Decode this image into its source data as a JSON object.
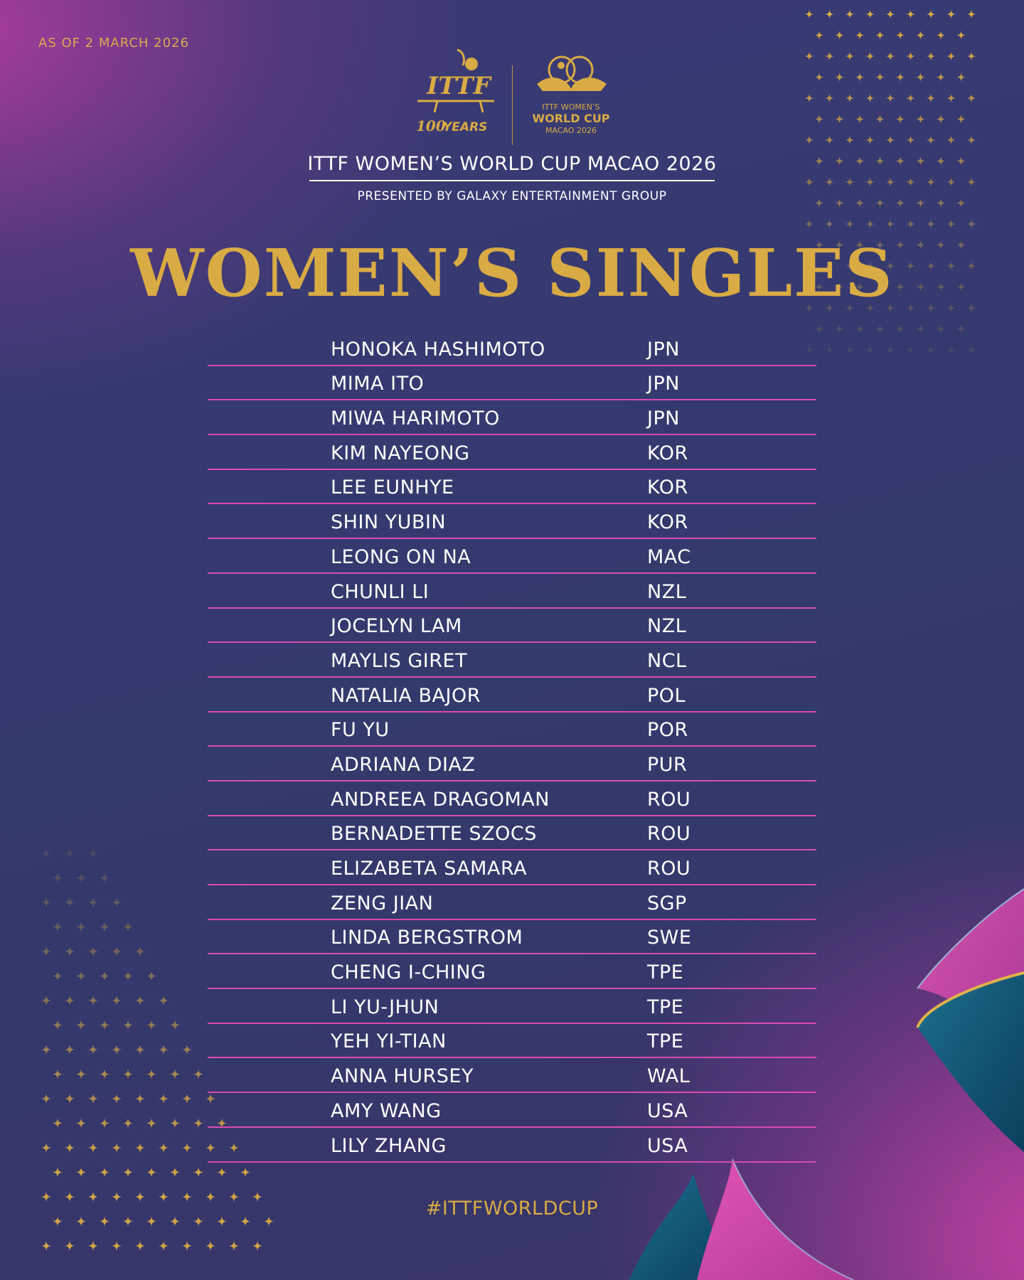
{
  "header": {
    "as_of": "AS OF 2 MARCH 2026",
    "event_title": "ITTF WOMEN’S WORLD CUP MACAO 2026",
    "presented_by": "PRESENTED BY GALAXY ENTERTAINMENT GROUP"
  },
  "logos": {
    "ittf_text": "ITTF",
    "years_number": "100",
    "years_text": "YEARS",
    "world_cup_line1": "ITTF WOMEN’S",
    "world_cup_line2": "WORLD CUP",
    "world_cup_line3": "MACAO 2026",
    "accent_color": "#d9ab44"
  },
  "main_title": "WOMEN’S SINGLES",
  "players": [
    {
      "name": "HONOKA HASHIMOTO",
      "code": "JPN"
    },
    {
      "name": "MIMA ITO",
      "code": "JPN"
    },
    {
      "name": "MIWA HARIMOTO",
      "code": "JPN"
    },
    {
      "name": "KIM NAYEONG",
      "code": "KOR"
    },
    {
      "name": "LEE EUNHYE",
      "code": "KOR"
    },
    {
      "name": "SHIN YUBIN",
      "code": "KOR"
    },
    {
      "name": "LEONG ON NA",
      "code": "MAC"
    },
    {
      "name": "CHUNLI LI",
      "code": "NZL"
    },
    {
      "name": "JOCELYN LAM",
      "code": "NZL"
    },
    {
      "name": "MAYLIS GIRET",
      "code": "NCL"
    },
    {
      "name": "NATALIA BAJOR",
      "code": "POL"
    },
    {
      "name": "FU YU",
      "code": "POR"
    },
    {
      "name": "ADRIANA DIAZ",
      "code": "PUR"
    },
    {
      "name": "ANDREEA DRAGOMAN",
      "code": "ROU"
    },
    {
      "name": "BERNADETTE SZOCS",
      "code": "ROU"
    },
    {
      "name": "ELIZABETA SAMARA",
      "code": "ROU"
    },
    {
      "name": "ZENG JIAN",
      "code": "SGP"
    },
    {
      "name": "LINDA BERGSTROM",
      "code": "SWE"
    },
    {
      "name": "CHENG I-CHING",
      "code": "TPE"
    },
    {
      "name": "LI YU-JHUN",
      "code": "TPE"
    },
    {
      "name": "YEH YI-TIAN",
      "code": "TPE"
    },
    {
      "name": "ANNA HURSEY",
      "code": "WAL"
    },
    {
      "name": "AMY WANG",
      "code": "USA"
    },
    {
      "name": "LILY ZHANG",
      "code": "USA"
    }
  ],
  "hashtag": "#ITTFWORLDCUP",
  "colors": {
    "gold": "#d9ab44",
    "row_rule": "#d94bb0",
    "background": "#353a6e",
    "magenta": "#cf47a8",
    "teal": "#0f5a75"
  }
}
